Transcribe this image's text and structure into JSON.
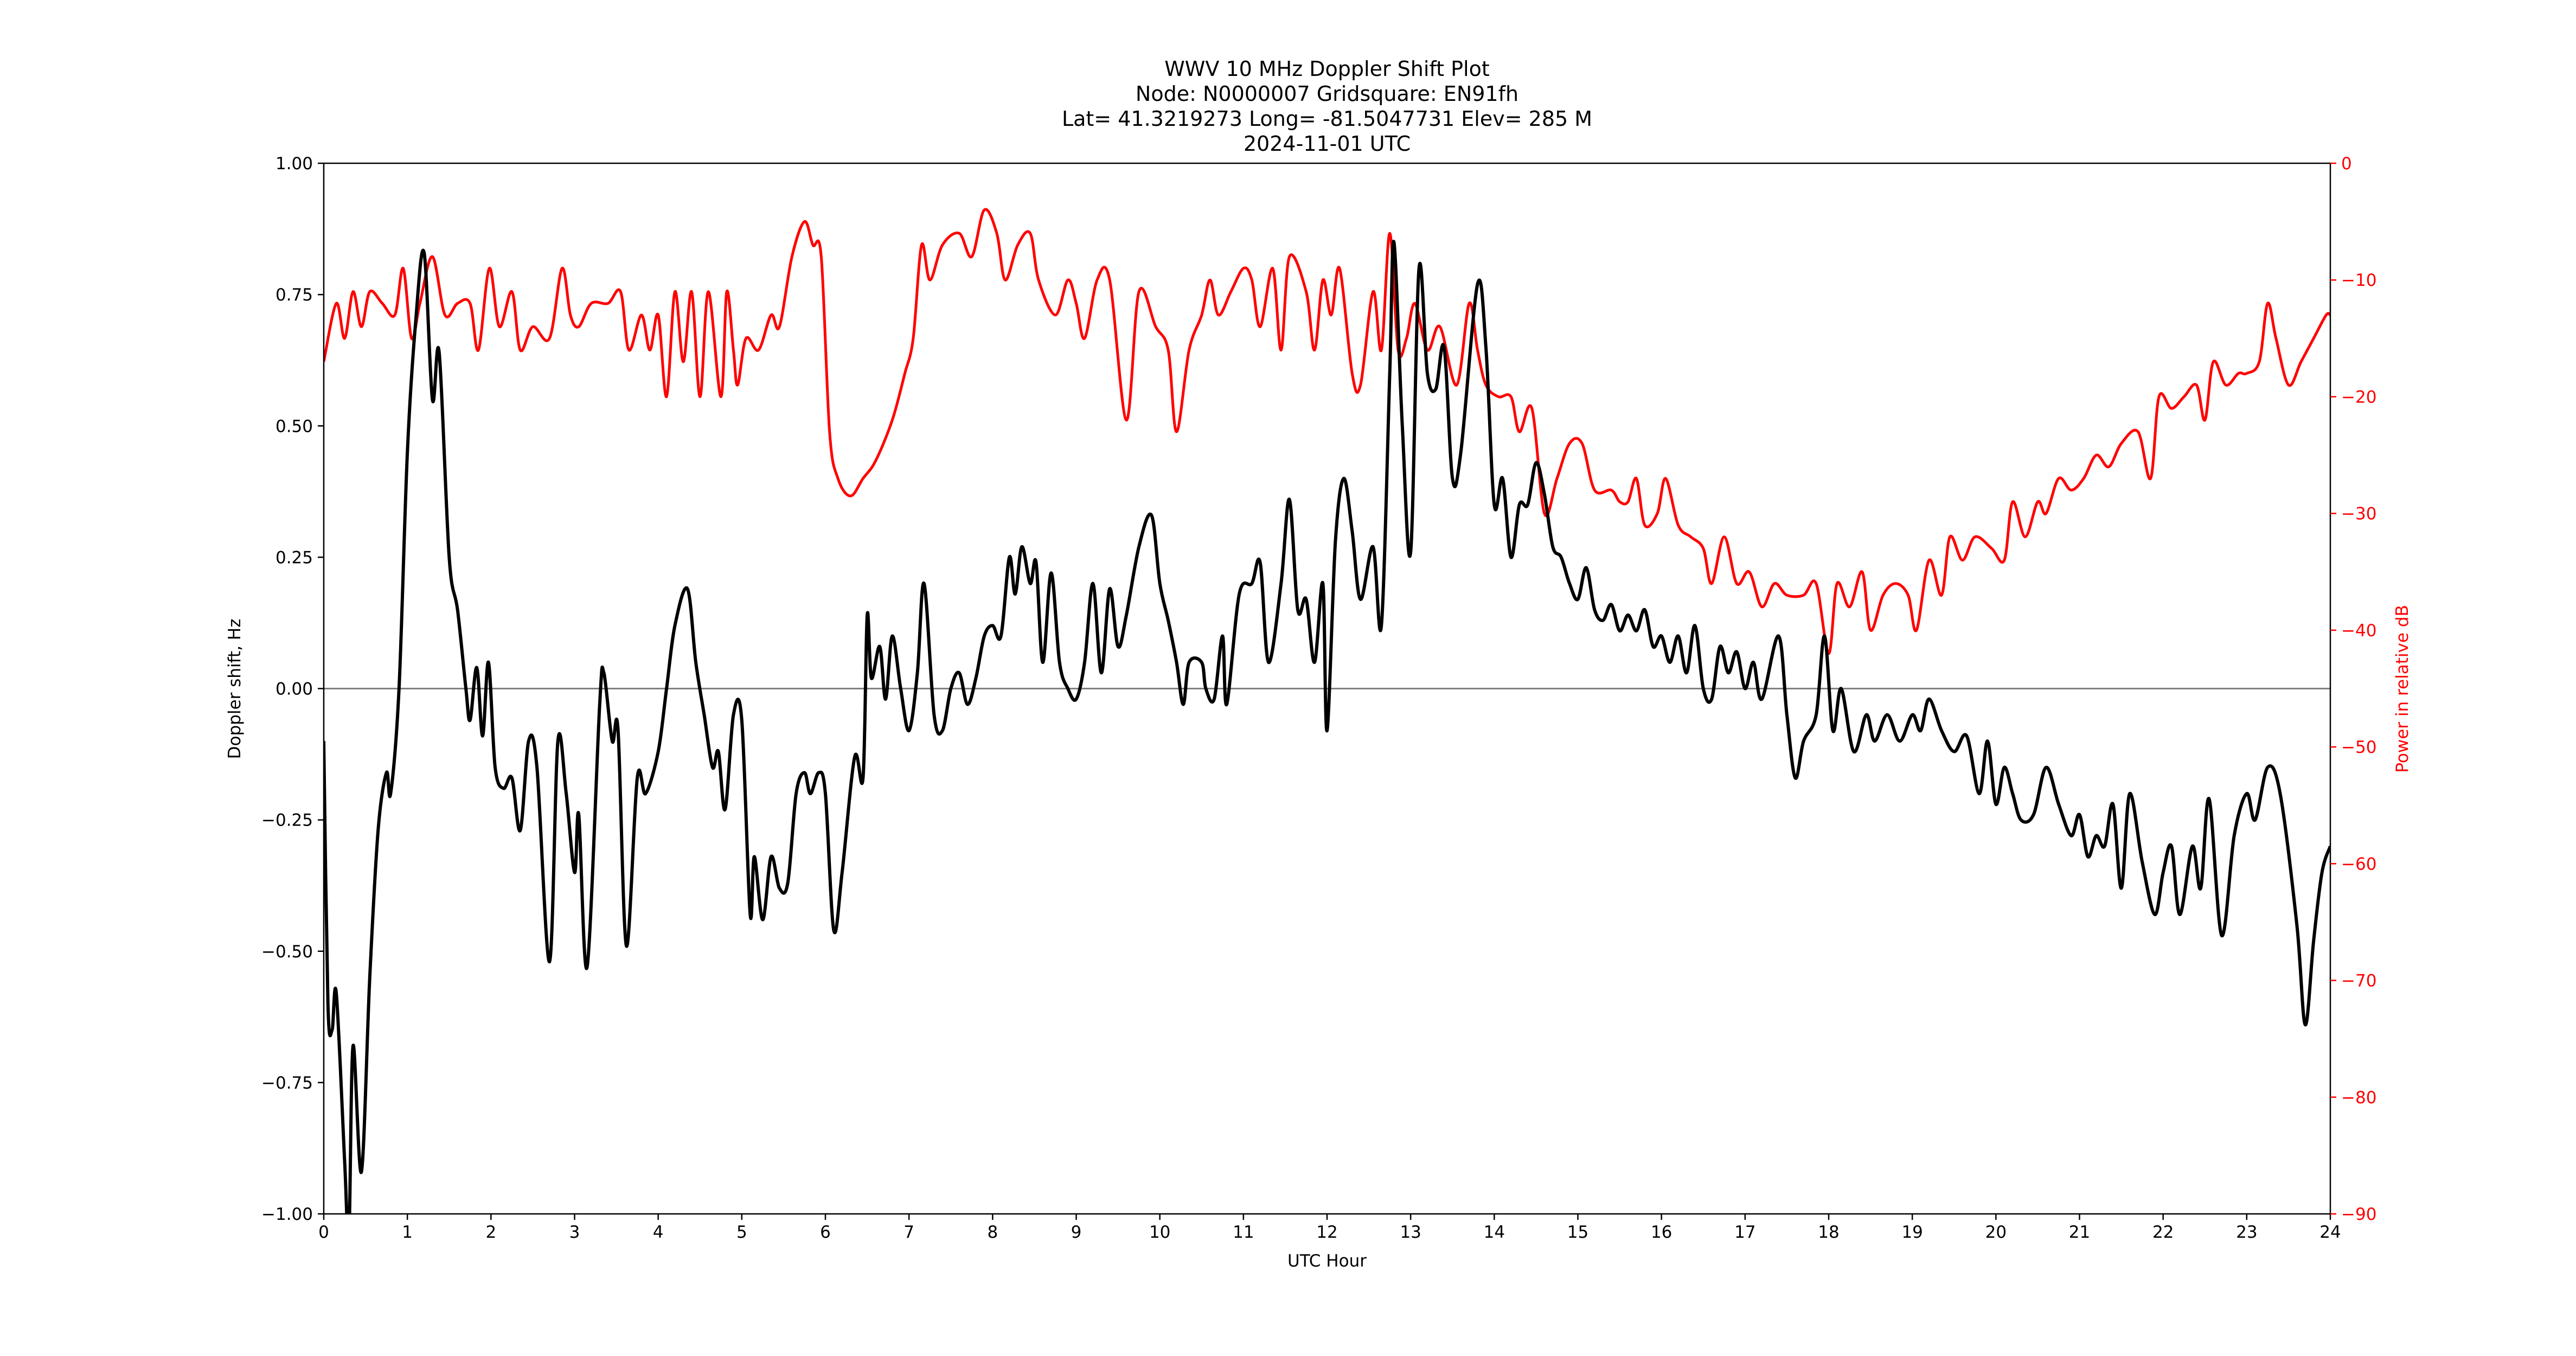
{
  "chart_data": {
    "type": "line",
    "title_lines": [
      "WWV 10 MHz Doppler Shift Plot",
      "Node:  N0000007     Gridsquare:  EN91fh",
      "Lat= 41.3219273    Long= -81.5047731    Elev= 285 M",
      "2024-11-01  UTC"
    ],
    "xlabel": "UTC Hour",
    "ylabel": "Doppler shift, Hz",
    "y2label": "Power in relative dB",
    "xlim": [
      0,
      24
    ],
    "ylim": [
      -1.0,
      1.0
    ],
    "y2lim": [
      -90,
      0
    ],
    "xticks": [
      "0",
      "1",
      "2",
      "3",
      "4",
      "5",
      "6",
      "7",
      "8",
      "9",
      "10",
      "11",
      "12",
      "13",
      "14",
      "15",
      "16",
      "17",
      "18",
      "19",
      "20",
      "21",
      "22",
      "23",
      "24"
    ],
    "yticks": [
      "1.00",
      "0.75",
      "0.50",
      "0.25",
      "0.00",
      "−0.25",
      "−0.50",
      "−0.75",
      "−1.00"
    ],
    "y2ticks": [
      "0",
      "−10",
      "−20",
      "−30",
      "−40",
      "−50",
      "−60",
      "−70",
      "−80",
      "−90"
    ],
    "zero_line": true,
    "grid": false,
    "colors": {
      "doppler": "#000000",
      "power": "#ff0000",
      "zero_line": "#808080",
      "y2_axis": "#ff0000"
    },
    "series": [
      {
        "axis": "left",
        "x": [
          0,
          0.05,
          0.1,
          0.15,
          0.25,
          0.3,
          0.35,
          0.45,
          0.55,
          0.65,
          0.75,
          0.8,
          0.9,
          1.0,
          1.1,
          1.2,
          1.3,
          1.38,
          1.5,
          1.6,
          1.7,
          1.75,
          1.83,
          1.9,
          1.97,
          2.05,
          2.15,
          2.25,
          2.35,
          2.45,
          2.55,
          2.7,
          2.8,
          2.9,
          3.0,
          3.05,
          3.15,
          3.3,
          3.35,
          3.45,
          3.52,
          3.62,
          3.75,
          3.85,
          4.0,
          4.1,
          4.2,
          4.35,
          4.45,
          4.55,
          4.65,
          4.72,
          4.8,
          4.9,
          5.0,
          5.1,
          5.15,
          5.25,
          5.35,
          5.45,
          5.55,
          5.65,
          5.75,
          5.82,
          5.92,
          6.0,
          6.1,
          6.2,
          6.35,
          6.45,
          6.5,
          6.55,
          6.65,
          6.72,
          6.8,
          6.9,
          7.0,
          7.1,
          7.18,
          7.3,
          7.4,
          7.5,
          7.6,
          7.7,
          7.8,
          7.9,
          8.0,
          8.1,
          8.2,
          8.27,
          8.35,
          8.45,
          8.52,
          8.6,
          8.7,
          8.8,
          8.9,
          9.0,
          9.1,
          9.2,
          9.3,
          9.4,
          9.5,
          9.6,
          9.75,
          9.9,
          10.0,
          10.1,
          10.2,
          10.28,
          10.35,
          10.5,
          10.55,
          10.65,
          10.75,
          10.8,
          10.95,
          11.1,
          11.2,
          11.3,
          11.45,
          11.55,
          11.65,
          11.75,
          11.85,
          11.95,
          12.0,
          12.1,
          12.2,
          12.3,
          12.4,
          12.55,
          12.65,
          12.75,
          12.8,
          12.9,
          13.0,
          13.1,
          13.2,
          13.3,
          13.4,
          13.5,
          13.6,
          13.8,
          13.9,
          14.0,
          14.1,
          14.2,
          14.3,
          14.4,
          14.5,
          14.6,
          14.7,
          14.8,
          14.9,
          15.0,
          15.1,
          15.2,
          15.3,
          15.4,
          15.5,
          15.6,
          15.7,
          15.8,
          15.9,
          16.0,
          16.1,
          16.2,
          16.3,
          16.4,
          16.5,
          16.6,
          16.7,
          16.8,
          16.9,
          17.0,
          17.1,
          17.2,
          17.4,
          17.5,
          17.6,
          17.7,
          17.85,
          17.95,
          18.05,
          18.15,
          18.3,
          18.45,
          18.55,
          18.7,
          18.85,
          19.0,
          19.1,
          19.2,
          19.35,
          19.5,
          19.65,
          19.8,
          19.9,
          20.0,
          20.1,
          20.2,
          20.3,
          20.45,
          20.6,
          20.75,
          20.9,
          21.0,
          21.1,
          21.2,
          21.3,
          21.4,
          21.5,
          21.6,
          21.75,
          21.9,
          22.0,
          22.1,
          22.2,
          22.35,
          22.45,
          22.55,
          22.7,
          22.85,
          23.0,
          23.1,
          23.25,
          23.4,
          23.6,
          23.7,
          23.8,
          23.9,
          24.0
        ],
        "y": [
          -0.1,
          -0.6,
          -0.65,
          -0.58,
          -0.9,
          -1.05,
          -0.68,
          -0.92,
          -0.55,
          -0.27,
          -0.16,
          -0.2,
          0.0,
          0.45,
          0.7,
          0.83,
          0.55,
          0.64,
          0.25,
          0.15,
          0.0,
          -0.06,
          0.04,
          -0.09,
          0.05,
          -0.15,
          -0.19,
          -0.17,
          -0.27,
          -0.1,
          -0.15,
          -0.52,
          -0.1,
          -0.2,
          -0.35,
          -0.24,
          -0.53,
          -0.03,
          0.03,
          -0.1,
          -0.08,
          -0.49,
          -0.17,
          -0.2,
          -0.12,
          0.0,
          0.12,
          0.19,
          0.05,
          -0.05,
          -0.15,
          -0.12,
          -0.23,
          -0.05,
          -0.06,
          -0.43,
          -0.32,
          -0.44,
          -0.32,
          -0.38,
          -0.37,
          -0.2,
          -0.16,
          -0.2,
          -0.16,
          -0.2,
          -0.46,
          -0.35,
          -0.13,
          -0.17,
          0.14,
          0.02,
          0.08,
          -0.02,
          0.1,
          0.0,
          -0.08,
          0.03,
          0.2,
          -0.05,
          -0.08,
          0.0,
          0.03,
          -0.03,
          0.02,
          0.1,
          0.12,
          0.1,
          0.25,
          0.18,
          0.27,
          0.2,
          0.24,
          0.05,
          0.22,
          0.05,
          0.0,
          -0.02,
          0.05,
          0.2,
          0.03,
          0.19,
          0.08,
          0.14,
          0.27,
          0.33,
          0.2,
          0.13,
          0.05,
          -0.03,
          0.05,
          0.05,
          0.0,
          -0.02,
          0.1,
          -0.03,
          0.18,
          0.2,
          0.24,
          0.05,
          0.2,
          0.36,
          0.15,
          0.17,
          0.05,
          0.2,
          -0.08,
          0.28,
          0.4,
          0.3,
          0.17,
          0.27,
          0.12,
          0.6,
          0.85,
          0.5,
          0.26,
          0.8,
          0.6,
          0.57,
          0.65,
          0.4,
          0.45,
          0.77,
          0.65,
          0.35,
          0.4,
          0.25,
          0.35,
          0.35,
          0.43,
          0.37,
          0.27,
          0.25,
          0.2,
          0.17,
          0.23,
          0.15,
          0.13,
          0.16,
          0.11,
          0.14,
          0.11,
          0.15,
          0.08,
          0.1,
          0.05,
          0.1,
          0.03,
          0.12,
          0.0,
          -0.02,
          0.08,
          0.03,
          0.07,
          0.0,
          0.05,
          -0.02,
          0.1,
          -0.05,
          -0.17,
          -0.1,
          -0.05,
          0.1,
          -0.08,
          0.0,
          -0.12,
          -0.05,
          -0.1,
          -0.05,
          -0.1,
          -0.05,
          -0.08,
          -0.02,
          -0.08,
          -0.12,
          -0.09,
          -0.2,
          -0.1,
          -0.22,
          -0.15,
          -0.2,
          -0.25,
          -0.24,
          -0.15,
          -0.22,
          -0.28,
          -0.24,
          -0.32,
          -0.28,
          -0.3,
          -0.22,
          -0.38,
          -0.2,
          -0.33,
          -0.43,
          -0.35,
          -0.3,
          -0.43,
          -0.3,
          -0.38,
          -0.21,
          -0.47,
          -0.28,
          -0.2,
          -0.25,
          -0.15,
          -0.2,
          -0.45,
          -0.64,
          -0.48,
          -0.35,
          -0.3
        ]
      },
      {
        "axis": "right",
        "x": [
          0,
          0.15,
          0.25,
          0.35,
          0.45,
          0.55,
          0.7,
          0.85,
          0.95,
          1.05,
          1.15,
          1.3,
          1.45,
          1.6,
          1.75,
          1.85,
          1.98,
          2.1,
          2.25,
          2.35,
          2.5,
          2.7,
          2.85,
          2.95,
          3.05,
          3.2,
          3.4,
          3.55,
          3.65,
          3.8,
          3.9,
          4.0,
          4.1,
          4.2,
          4.3,
          4.4,
          4.5,
          4.6,
          4.75,
          4.82,
          4.9,
          4.95,
          5.05,
          5.2,
          5.35,
          5.45,
          5.6,
          5.75,
          5.85,
          5.95,
          6.05,
          6.15,
          6.3,
          6.45,
          6.6,
          6.8,
          6.95,
          7.05,
          7.15,
          7.25,
          7.4,
          7.6,
          7.75,
          7.9,
          8.05,
          8.15,
          8.3,
          8.45,
          8.55,
          8.75,
          8.9,
          9.0,
          9.1,
          9.25,
          9.4,
          9.6,
          9.75,
          9.95,
          10.1,
          10.2,
          10.35,
          10.5,
          10.6,
          10.7,
          10.85,
          11.0,
          11.1,
          11.2,
          11.35,
          11.45,
          11.55,
          11.75,
          11.85,
          11.95,
          12.05,
          12.15,
          12.3,
          12.4,
          12.55,
          12.65,
          12.75,
          12.85,
          12.95,
          13.05,
          13.2,
          13.35,
          13.55,
          13.7,
          13.8,
          13.9,
          14.05,
          14.2,
          14.3,
          14.45,
          14.6,
          14.75,
          14.9,
          15.05,
          15.2,
          15.4,
          15.5,
          15.6,
          15.7,
          15.8,
          15.95,
          16.05,
          16.2,
          16.35,
          16.5,
          16.6,
          16.75,
          16.9,
          17.05,
          17.2,
          17.35,
          17.5,
          17.7,
          17.85,
          18.0,
          18.1,
          18.25,
          18.4,
          18.5,
          18.65,
          18.8,
          18.95,
          19.05,
          19.2,
          19.35,
          19.45,
          19.6,
          19.75,
          19.95,
          20.1,
          20.2,
          20.35,
          20.5,
          20.6,
          20.75,
          20.9,
          21.05,
          21.2,
          21.35,
          21.5,
          21.7,
          21.85,
          21.95,
          22.1,
          22.25,
          22.4,
          22.5,
          22.6,
          22.75,
          22.9,
          23.0,
          23.15,
          23.25,
          23.35,
          23.5,
          23.65,
          23.8,
          23.95,
          24.0
        ],
        "y": [
          -17,
          -12,
          -15,
          -11,
          -14,
          -11,
          -12,
          -13,
          -9,
          -15,
          -12,
          -8,
          -13,
          -12,
          -12,
          -16,
          -9,
          -14,
          -11,
          -16,
          -14,
          -15,
          -9,
          -13,
          -14,
          -12,
          -12,
          -11,
          -16,
          -13,
          -16,
          -13,
          -20,
          -11,
          -17,
          -11,
          -20,
          -11,
          -20,
          -11,
          -16,
          -19,
          -15,
          -16,
          -13,
          -14,
          -8,
          -5,
          -7,
          -8,
          -23,
          -27,
          -28.5,
          -27,
          -25.5,
          -22,
          -18,
          -15,
          -7,
          -10,
          -7,
          -6,
          -8,
          -4,
          -6,
          -10,
          -7,
          -6,
          -10,
          -13,
          -10,
          -12,
          -15,
          -10,
          -10,
          -22,
          -11,
          -14,
          -16,
          -23,
          -16,
          -13,
          -10,
          -13,
          -11,
          -9,
          -10,
          -14,
          -9,
          -16,
          -8,
          -11,
          -16,
          -10,
          -13,
          -9,
          -18,
          -19,
          -11,
          -16,
          -6,
          -16,
          -15,
          -12,
          -16,
          -14,
          -19,
          -12,
          -16,
          -19,
          -20,
          -20,
          -23,
          -21,
          -30,
          -27,
          -24,
          -24,
          -28,
          -28,
          -29,
          -29,
          -27,
          -31,
          -30,
          -27,
          -31,
          -32,
          -33,
          -36,
          -32,
          -36,
          -35,
          -38,
          -36,
          -37,
          -37,
          -36,
          -42,
          -36,
          -38,
          -35,
          -40,
          -37,
          -36,
          -37,
          -40,
          -34,
          -37,
          -32,
          -34,
          -32,
          -33,
          -34,
          -29,
          -32,
          -29,
          -30,
          -27,
          -28,
          -27,
          -25,
          -26,
          -24,
          -23,
          -27,
          -20,
          -21,
          -20,
          -19,
          -22,
          -17,
          -19,
          -18,
          -18,
          -17,
          -12,
          -15,
          -19,
          -17,
          -15,
          -13,
          -13
        ]
      }
    ]
  }
}
